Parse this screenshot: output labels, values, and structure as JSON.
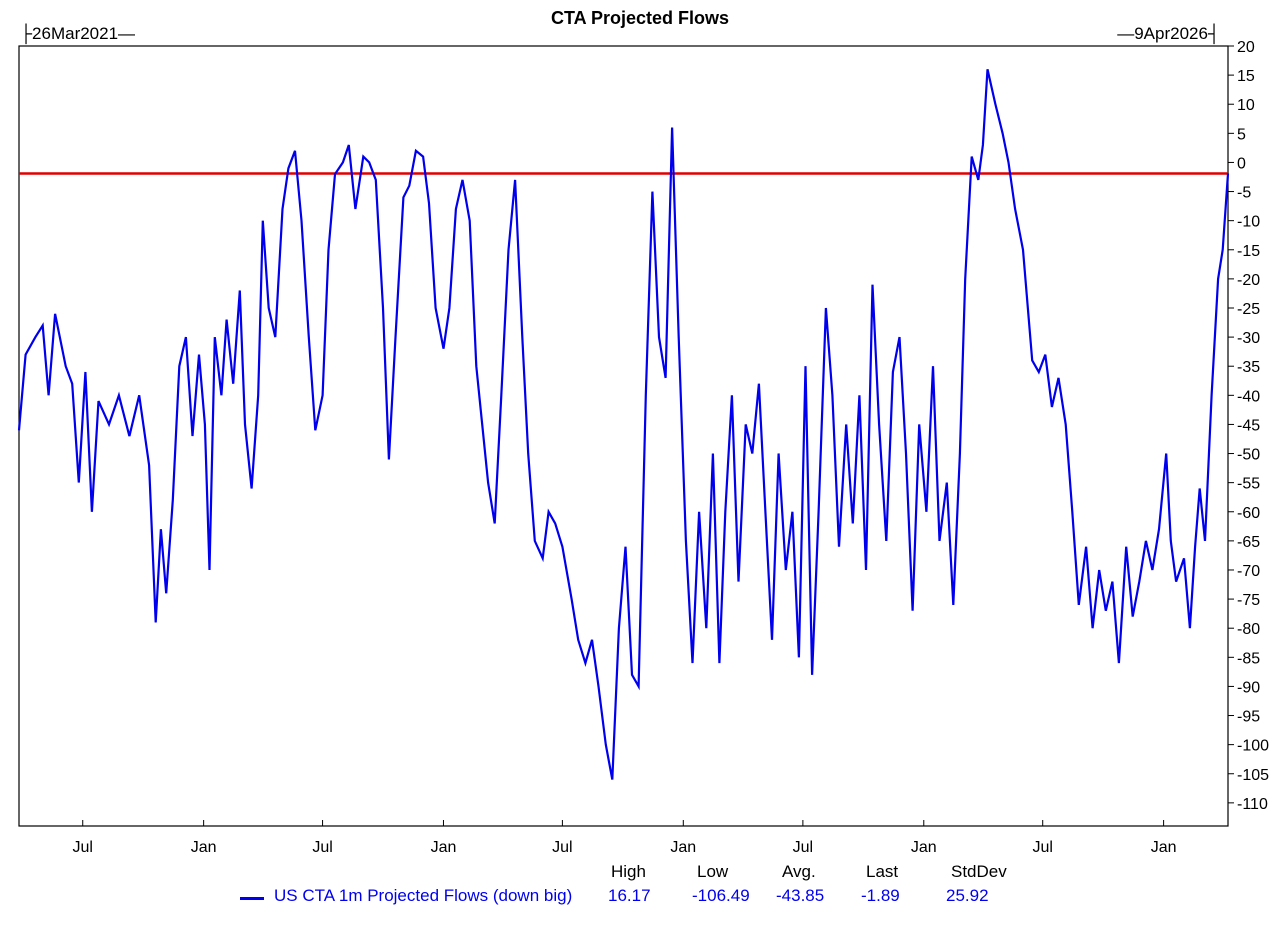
{
  "chart_data": {
    "type": "line",
    "title": "CTA Projected Flows",
    "start_label": "├26Mar2021—",
    "end_label": "—9Apr2026┤",
    "x_start": "2021-03-26",
    "x_end": "2026-04-09",
    "ylim": [
      -115,
      20
    ],
    "yticks": [
      20,
      15,
      10,
      5,
      0,
      -5,
      -10,
      -15,
      -20,
      -25,
      -30,
      -35,
      -40,
      -45,
      -50,
      -55,
      -60,
      -65,
      -70,
      -75,
      -80,
      -85,
      -90,
      -95,
      -100,
      -105,
      -110
    ],
    "xticks": [
      {
        "date": "2021-07-01",
        "label": "Jul"
      },
      {
        "date": "2022-01-01",
        "label": "Jan"
      },
      {
        "date": "2022-07-01",
        "label": "Jul"
      },
      {
        "date": "2023-01-01",
        "label": "Jan"
      },
      {
        "date": "2023-07-01",
        "label": "Jul"
      },
      {
        "date": "2024-01-01",
        "label": "Jan"
      },
      {
        "date": "2024-07-01",
        "label": "Jul"
      },
      {
        "date": "2025-01-01",
        "label": "Jan"
      },
      {
        "date": "2025-07-01",
        "label": "Jul"
      },
      {
        "date": "2026-01-01",
        "label": "Jan"
      }
    ],
    "reference_line": {
      "value": -1.89,
      "color": "#e00000"
    },
    "grid": false,
    "legend_position": "bottom",
    "series": [
      {
        "name": "US CTA 1m Projected Flows (down big)",
        "color": "#0000ee",
        "points": [
          [
            "2021-03-26",
            -46
          ],
          [
            "2021-04-05",
            -33
          ],
          [
            "2021-04-20",
            -30
          ],
          [
            "2021-05-01",
            -28
          ],
          [
            "2021-05-10",
            -40
          ],
          [
            "2021-05-20",
            -26
          ],
          [
            "2021-06-05",
            -35
          ],
          [
            "2021-06-15",
            -38
          ],
          [
            "2021-06-25",
            -55
          ],
          [
            "2021-07-05",
            -36
          ],
          [
            "2021-07-15",
            -60
          ],
          [
            "2021-07-25",
            -41
          ],
          [
            "2021-08-10",
            -45
          ],
          [
            "2021-08-25",
            -40
          ],
          [
            "2021-09-10",
            -47
          ],
          [
            "2021-09-25",
            -40
          ],
          [
            "2021-10-10",
            -52
          ],
          [
            "2021-10-20",
            -79
          ],
          [
            "2021-10-28",
            -63
          ],
          [
            "2021-11-05",
            -74
          ],
          [
            "2021-11-15",
            -58
          ],
          [
            "2021-11-25",
            -35
          ],
          [
            "2021-12-05",
            -30
          ],
          [
            "2021-12-15",
            -47
          ],
          [
            "2021-12-25",
            -33
          ],
          [
            "2022-01-03",
            -45
          ],
          [
            "2022-01-10",
            -70
          ],
          [
            "2022-01-18",
            -30
          ],
          [
            "2022-01-28",
            -40
          ],
          [
            "2022-02-05",
            -27
          ],
          [
            "2022-02-15",
            -38
          ],
          [
            "2022-02-25",
            -22
          ],
          [
            "2022-03-05",
            -45
          ],
          [
            "2022-03-15",
            -56
          ],
          [
            "2022-03-25",
            -40
          ],
          [
            "2022-04-01",
            -10
          ],
          [
            "2022-04-10",
            -25
          ],
          [
            "2022-04-20",
            -30
          ],
          [
            "2022-05-01",
            -8
          ],
          [
            "2022-05-10",
            -1
          ],
          [
            "2022-05-20",
            2
          ],
          [
            "2022-05-30",
            -10
          ],
          [
            "2022-06-10",
            -30
          ],
          [
            "2022-06-20",
            -46
          ],
          [
            "2022-07-01",
            -40
          ],
          [
            "2022-07-10",
            -15
          ],
          [
            "2022-07-20",
            -2
          ],
          [
            "2022-08-01",
            0
          ],
          [
            "2022-08-10",
            3
          ],
          [
            "2022-08-20",
            -8
          ],
          [
            "2022-09-01",
            1
          ],
          [
            "2022-09-10",
            0
          ],
          [
            "2022-09-20",
            -3
          ],
          [
            "2022-10-01",
            -25
          ],
          [
            "2022-10-10",
            -51
          ],
          [
            "2022-10-20",
            -30
          ],
          [
            "2022-11-01",
            -6
          ],
          [
            "2022-11-10",
            -4
          ],
          [
            "2022-11-20",
            2
          ],
          [
            "2022-12-01",
            1
          ],
          [
            "2022-12-10",
            -7
          ],
          [
            "2022-12-20",
            -25
          ],
          [
            "2023-01-01",
            -32
          ],
          [
            "2023-01-10",
            -25
          ],
          [
            "2023-01-20",
            -8
          ],
          [
            "2023-01-30",
            -3
          ],
          [
            "2023-02-10",
            -10
          ],
          [
            "2023-02-20",
            -35
          ],
          [
            "2023-03-01",
            -45
          ],
          [
            "2023-03-10",
            -55
          ],
          [
            "2023-03-20",
            -62
          ],
          [
            "2023-03-30",
            -40
          ],
          [
            "2023-04-10",
            -15
          ],
          [
            "2023-04-20",
            -3
          ],
          [
            "2023-05-01",
            -30
          ],
          [
            "2023-05-10",
            -50
          ],
          [
            "2023-05-20",
            -65
          ],
          [
            "2023-06-01",
            -68
          ],
          [
            "2023-06-10",
            -60
          ],
          [
            "2023-06-20",
            -62
          ],
          [
            "2023-07-01",
            -66
          ],
          [
            "2023-07-15",
            -75
          ],
          [
            "2023-07-25",
            -82
          ],
          [
            "2023-08-05",
            -86
          ],
          [
            "2023-08-15",
            -82
          ],
          [
            "2023-08-25",
            -90
          ],
          [
            "2023-09-05",
            -100
          ],
          [
            "2023-09-15",
            -106
          ],
          [
            "2023-09-25",
            -80
          ],
          [
            "2023-10-05",
            -66
          ],
          [
            "2023-10-15",
            -88
          ],
          [
            "2023-10-25",
            -90
          ],
          [
            "2023-11-05",
            -40
          ],
          [
            "2023-11-15",
            -5
          ],
          [
            "2023-11-25",
            -30
          ],
          [
            "2023-12-05",
            -37
          ],
          [
            "2023-12-15",
            6
          ],
          [
            "2023-12-25",
            -30
          ],
          [
            "2024-01-05",
            -65
          ],
          [
            "2024-01-15",
            -86
          ],
          [
            "2024-01-25",
            -60
          ],
          [
            "2024-02-05",
            -80
          ],
          [
            "2024-02-15",
            -50
          ],
          [
            "2024-02-25",
            -86
          ],
          [
            "2024-03-05",
            -60
          ],
          [
            "2024-03-15",
            -40
          ],
          [
            "2024-03-25",
            -72
          ],
          [
            "2024-04-05",
            -45
          ],
          [
            "2024-04-15",
            -50
          ],
          [
            "2024-04-25",
            -38
          ],
          [
            "2024-05-05",
            -60
          ],
          [
            "2024-05-15",
            -82
          ],
          [
            "2024-05-25",
            -50
          ],
          [
            "2024-06-05",
            -70
          ],
          [
            "2024-06-15",
            -60
          ],
          [
            "2024-06-25",
            -85
          ],
          [
            "2024-07-05",
            -35
          ],
          [
            "2024-07-15",
            -88
          ],
          [
            "2024-07-25",
            -60
          ],
          [
            "2024-08-05",
            -25
          ],
          [
            "2024-08-15",
            -40
          ],
          [
            "2024-08-25",
            -66
          ],
          [
            "2024-09-05",
            -45
          ],
          [
            "2024-09-15",
            -62
          ],
          [
            "2024-09-25",
            -40
          ],
          [
            "2024-10-05",
            -70
          ],
          [
            "2024-10-15",
            -21
          ],
          [
            "2024-10-25",
            -45
          ],
          [
            "2024-11-05",
            -65
          ],
          [
            "2024-11-15",
            -36
          ],
          [
            "2024-11-25",
            -30
          ],
          [
            "2024-12-05",
            -50
          ],
          [
            "2024-12-15",
            -77
          ],
          [
            "2024-12-25",
            -45
          ],
          [
            "2025-01-05",
            -60
          ],
          [
            "2025-01-15",
            -35
          ],
          [
            "2025-01-25",
            -65
          ],
          [
            "2025-02-05",
            -55
          ],
          [
            "2025-02-15",
            -76
          ],
          [
            "2025-02-25",
            -50
          ],
          [
            "2025-03-05",
            -20
          ],
          [
            "2025-03-15",
            1
          ],
          [
            "2025-03-25",
            -3
          ],
          [
            "2025-04-01",
            3
          ],
          [
            "2025-04-08",
            16
          ],
          [
            "2025-04-20",
            10
          ],
          [
            "2025-05-01",
            5
          ],
          [
            "2025-05-10",
            0
          ],
          [
            "2025-05-20",
            -8
          ],
          [
            "2025-06-01",
            -15
          ],
          [
            "2025-06-15",
            -34
          ],
          [
            "2025-06-25",
            -36
          ],
          [
            "2025-07-05",
            -33
          ],
          [
            "2025-07-15",
            -42
          ],
          [
            "2025-07-25",
            -37
          ],
          [
            "2025-08-05",
            -45
          ],
          [
            "2025-08-15",
            -60
          ],
          [
            "2025-08-25",
            -76
          ],
          [
            "2025-09-05",
            -66
          ],
          [
            "2025-09-15",
            -80
          ],
          [
            "2025-09-25",
            -70
          ],
          [
            "2025-10-05",
            -77
          ],
          [
            "2025-10-15",
            -72
          ],
          [
            "2025-10-25",
            -86
          ],
          [
            "2025-11-05",
            -66
          ],
          [
            "2025-11-15",
            -78
          ],
          [
            "2025-11-25",
            -72
          ],
          [
            "2025-12-05",
            -65
          ],
          [
            "2025-12-15",
            -70
          ],
          [
            "2025-12-25",
            -63
          ],
          [
            "2026-01-05",
            -50
          ],
          [
            "2026-01-12",
            -65
          ],
          [
            "2026-01-20",
            -72
          ],
          [
            "2026-02-01",
            -68
          ],
          [
            "2026-02-10",
            -80
          ],
          [
            "2026-02-18",
            -66
          ],
          [
            "2026-02-25",
            -56
          ],
          [
            "2026-03-05",
            -65
          ],
          [
            "2026-03-15",
            -40
          ],
          [
            "2026-03-25",
            -20
          ],
          [
            "2026-04-01",
            -15
          ],
          [
            "2026-04-09",
            -1.89
          ]
        ]
      }
    ],
    "stats": {
      "headers": [
        "High",
        "Low",
        "Avg.",
        "Last",
        "StdDev"
      ],
      "values": [
        "16.17",
        "-106.49",
        "-43.85",
        "-1.89",
        "25.92"
      ]
    }
  }
}
